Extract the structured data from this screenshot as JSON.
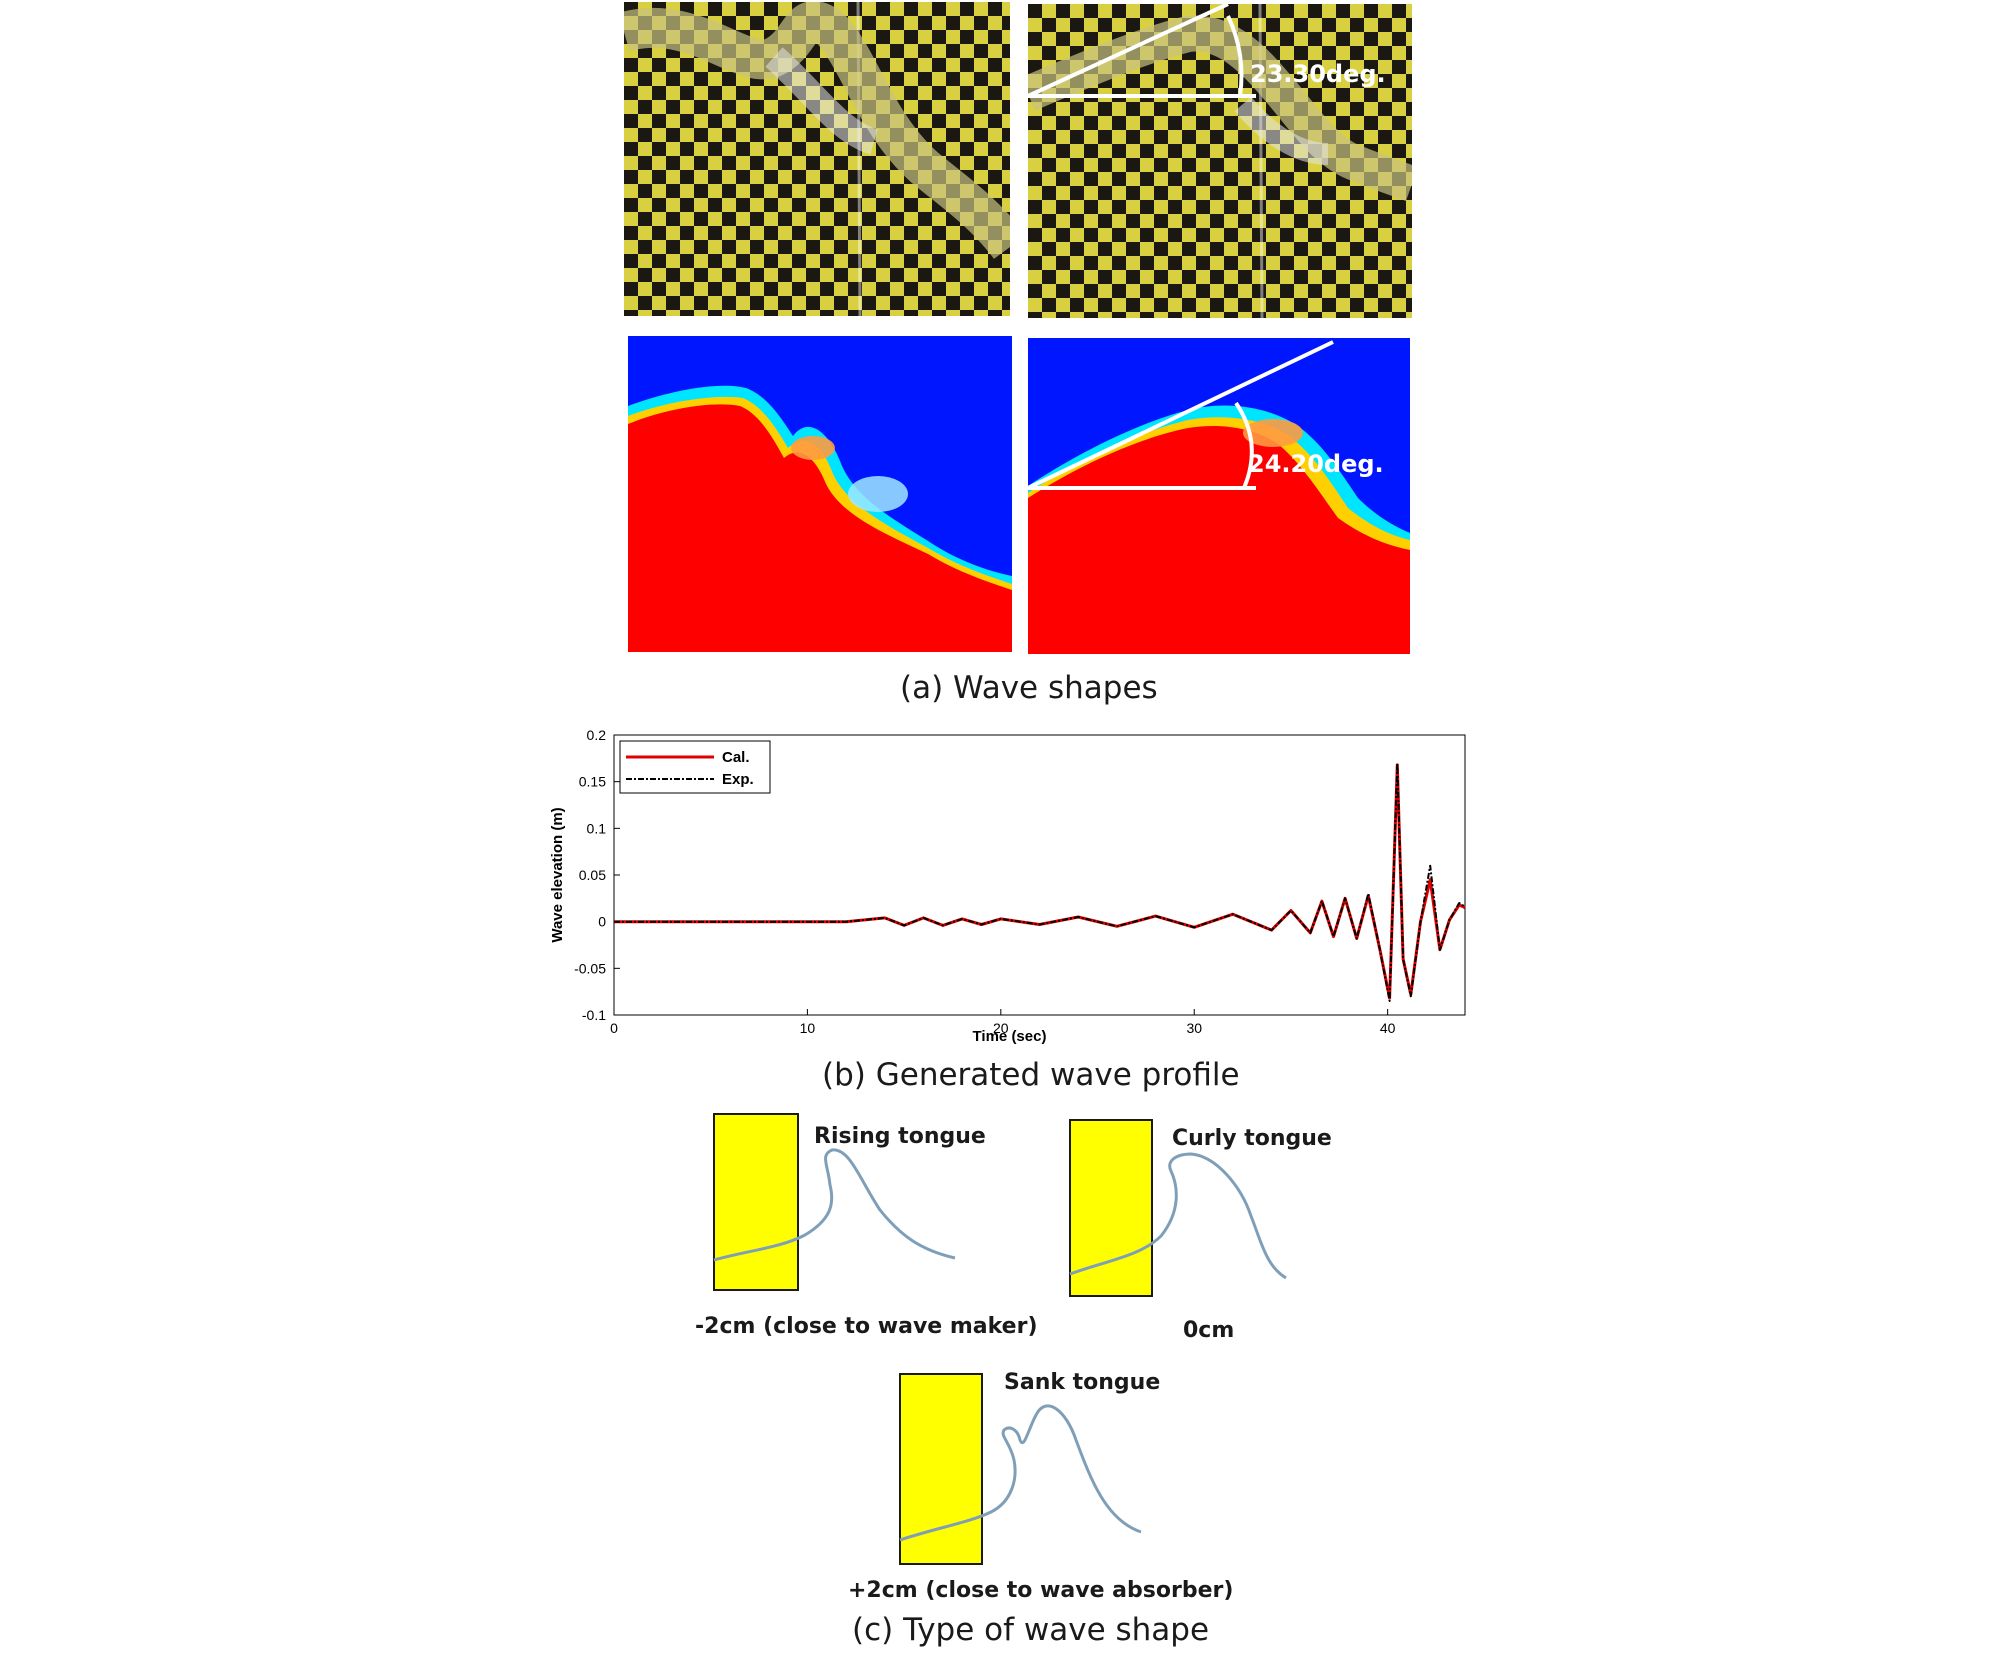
{
  "panel_a": {
    "caption": "(a) Wave shapes",
    "exp_angle_label": "23.30deg.",
    "sim_angle_label": "24.20deg.",
    "colors": {
      "checker_dark": "#1a1810",
      "checker_light": "#d8d040",
      "sim_red": "#ff0000",
      "sim_blue": "#0016ff",
      "sim_cyan": "#00e5ff"
    }
  },
  "panel_b": {
    "caption": "(b) Generated wave profile"
  },
  "panel_c": {
    "caption": "(c) Type of wave shape",
    "rising_label": "Rising tongue",
    "rising_position": "-2cm (close to wave maker)",
    "curly_label": "Curly tongue",
    "curly_position": "0cm",
    "sank_label": "Sank tongue",
    "sank_position": "+2cm (close to wave absorber)",
    "colors": {
      "block": "#ffff00",
      "curve": "#7f9fb8"
    }
  },
  "chart_data": {
    "type": "line",
    "xlabel": "Time (sec)",
    "ylabel": "Wave elevation (m)",
    "xlim": [
      0,
      44
    ],
    "ylim": [
      -0.1,
      0.2
    ],
    "xticks": [
      "0",
      "10",
      "20",
      "30",
      "40"
    ],
    "yticks": [
      "-0.1",
      "-0.05",
      "0",
      "0.05",
      "0.1",
      "0.15",
      "0.2"
    ],
    "legend_position": "top-left",
    "series": [
      {
        "name": "Cal.",
        "color": "#e00000",
        "style": "solid",
        "x": [
          0,
          12,
          14,
          15,
          16,
          17,
          18,
          19,
          20,
          22,
          24,
          26,
          28,
          30,
          32,
          34,
          35,
          36,
          36.6,
          37.2,
          37.8,
          38.4,
          39.0,
          39.6,
          40.1,
          40.5,
          40.8,
          41.2,
          41.7,
          42.2,
          42.7,
          43.2,
          43.7,
          44
        ],
        "values": [
          0,
          0,
          0.004,
          -0.004,
          0.004,
          -0.004,
          0.003,
          -0.003,
          0.003,
          -0.003,
          0.005,
          -0.005,
          0.006,
          -0.006,
          0.008,
          -0.009,
          0.012,
          -0.012,
          0.022,
          -0.016,
          0.025,
          -0.018,
          0.028,
          -0.03,
          -0.082,
          0.168,
          -0.04,
          -0.078,
          0.0,
          0.045,
          -0.03,
          0.002,
          0.018,
          0.015
        ]
      },
      {
        "name": "Exp.",
        "color": "#000000",
        "style": "dash-dot",
        "x": [
          0,
          12,
          14,
          15,
          16,
          17,
          18,
          19,
          20,
          22,
          24,
          26,
          28,
          30,
          32,
          34,
          35,
          36,
          36.6,
          37.2,
          37.8,
          38.4,
          39.0,
          39.6,
          40.1,
          40.5,
          40.8,
          41.2,
          41.7,
          42.2,
          42.7,
          43.2,
          43.7,
          44
        ],
        "values": [
          0,
          0,
          0.004,
          -0.004,
          0.004,
          -0.004,
          0.003,
          -0.003,
          0.003,
          -0.003,
          0.005,
          -0.005,
          0.006,
          -0.006,
          0.008,
          -0.009,
          0.012,
          -0.012,
          0.022,
          -0.016,
          0.025,
          -0.018,
          0.03,
          -0.03,
          -0.085,
          0.17,
          -0.04,
          -0.08,
          0.0,
          0.06,
          -0.03,
          0.002,
          0.02,
          0.016
        ]
      }
    ]
  }
}
